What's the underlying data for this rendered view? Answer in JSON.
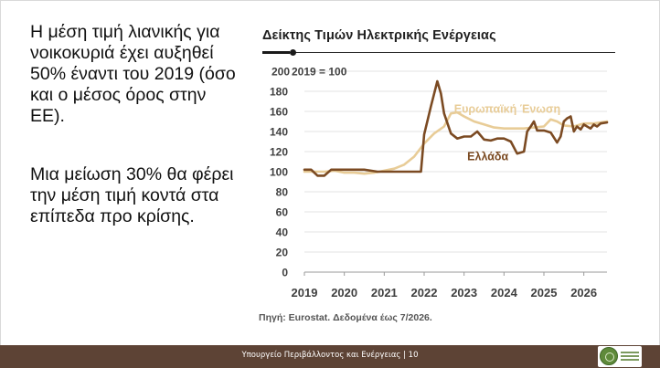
{
  "left_text": {
    "paragraph_1": "Η μέση τιμή λιανικής για νοικοκυριά έχει αυξηθεί 50% έναντι του 2019 (όσο και ο μέσος όρος στην ΕΕ).",
    "paragraph_2": "Μια μείωση 30% θα φέρει την μέση τιμή κοντά στα επίπεδα προ κρίσης."
  },
  "source_note": "Πηγή: Eurostat. Δεδομένα έως 7/2026.",
  "footer": {
    "text": "Υπουργείο Περιβάλλοντος και Ενέργειας | 10"
  },
  "chart_data": {
    "type": "line",
    "title": "Δείκτης Τιμών Ηλεκτρικής Ενέργειας",
    "ylabel": "2019 = 100",
    "xlabel": "",
    "xlim": [
      2019.0,
      2026.58
    ],
    "ylim": [
      0,
      200
    ],
    "y_ticks": [
      0,
      20,
      40,
      60,
      80,
      100,
      120,
      140,
      160,
      180,
      200
    ],
    "x_ticks": [
      "2019",
      "2020",
      "2021",
      "2022",
      "2023",
      "2024",
      "2025",
      "2026"
    ],
    "grid": true,
    "legend": "inline labels",
    "series": [
      {
        "name": "Ευρωπαϊκή Ένωση",
        "color": "#e8cc97",
        "x": [
          2019.0,
          2019.25,
          2019.5,
          2019.75,
          2020.0,
          2020.25,
          2020.5,
          2020.75,
          2021.0,
          2021.25,
          2021.5,
          2021.75,
          2022.0,
          2022.25,
          2022.5,
          2022.67,
          2022.83,
          2023.0,
          2023.25,
          2023.5,
          2023.75,
          2024.0,
          2024.25,
          2024.5,
          2024.75,
          2025.0,
          2025.17,
          2025.33,
          2025.5,
          2025.75,
          2026.0,
          2026.25,
          2026.58
        ],
        "y": [
          100,
          100,
          100,
          101,
          99,
          99,
          98,
          99,
          101,
          103,
          107,
          115,
          128,
          138,
          145,
          158,
          159,
          155,
          150,
          147,
          144,
          143,
          143,
          143,
          144,
          145,
          152,
          150,
          146,
          145,
          148,
          148,
          150
        ]
      },
      {
        "name": "Ελλάδα",
        "color": "#7b4a22",
        "x": [
          2019.0,
          2019.17,
          2019.33,
          2019.5,
          2019.67,
          2019.83,
          2020.0,
          2020.5,
          2020.83,
          2021.0,
          2021.33,
          2021.75,
          2021.92,
          2022.0,
          2022.17,
          2022.33,
          2022.42,
          2022.5,
          2022.67,
          2022.83,
          2023.0,
          2023.17,
          2023.33,
          2023.5,
          2023.67,
          2023.83,
          2024.0,
          2024.17,
          2024.33,
          2024.5,
          2024.58,
          2024.67,
          2024.75,
          2024.83,
          2025.0,
          2025.17,
          2025.33,
          2025.42,
          2025.5,
          2025.58,
          2025.67,
          2025.75,
          2025.83,
          2025.92,
          2026.0,
          2026.08,
          2026.17,
          2026.25,
          2026.33,
          2026.42,
          2026.58
        ],
        "y": [
          102,
          102,
          96,
          96,
          102,
          102,
          102,
          102,
          100,
          100,
          100,
          100,
          100,
          137,
          165,
          190,
          178,
          158,
          138,
          133,
          135,
          135,
          140,
          132,
          131,
          133,
          133,
          130,
          118,
          120,
          140,
          145,
          150,
          141,
          141,
          139,
          129,
          135,
          150,
          153,
          155,
          140,
          145,
          142,
          147,
          145,
          143,
          147,
          145,
          148,
          149
        ]
      }
    ],
    "annotations": [
      {
        "text": "Ευρωπαϊκή Ένωση",
        "series": "Ευρωπαϊκή Ένωση"
      },
      {
        "text": "Ελλάδα",
        "series": "Ελλάδα"
      }
    ]
  }
}
